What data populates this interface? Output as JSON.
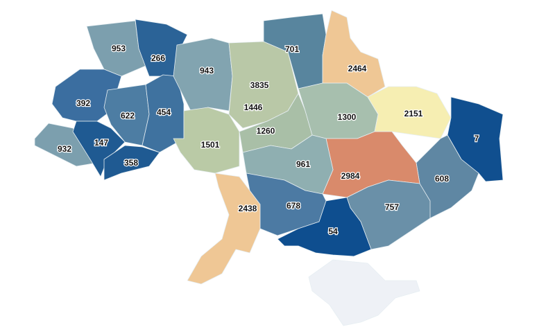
{
  "regions": [
    {
      "value": 953,
      "color": "#7c9fae"
    },
    {
      "value": 266,
      "color": "#2b6397"
    },
    {
      "value": 392,
      "color": "#3b6ea0"
    },
    {
      "value": 622,
      "color": "#4d7da3"
    },
    {
      "value": 454,
      "color": "#3f729f"
    },
    {
      "value": 932,
      "color": "#7c9fae"
    },
    {
      "value": 147,
      "color": "#1f5a92"
    },
    {
      "value": 358,
      "color": "#1f5a92"
    },
    {
      "value": 943,
      "color": "#82a4b0"
    },
    {
      "value": 3835,
      "color": "#b8535a"
    },
    {
      "value": 1446,
      "color": "#b9c8a7"
    },
    {
      "value": 1501,
      "color": "#bacaa6"
    },
    {
      "value": 1260,
      "color": "#a9bfa7"
    },
    {
      "value": 701,
      "color": "#58859e"
    },
    {
      "value": 2464,
      "color": "#efc795"
    },
    {
      "value": 1300,
      "color": "#a7bfae"
    },
    {
      "value": 2151,
      "color": "#f6eeb2"
    },
    {
      "value": 7,
      "color": "#104f8f"
    },
    {
      "value": 608,
      "color": "#5f87a3"
    },
    {
      "value": 2984,
      "color": "#d98a6b"
    },
    {
      "value": 961,
      "color": "#8fafb1"
    },
    {
      "value": 2438,
      "color": "#efc795"
    },
    {
      "value": 678,
      "color": "#4c7aa3"
    },
    {
      "value": 757,
      "color": "#6a90a8"
    },
    {
      "value": 54,
      "color": "#0e4e8f"
    }
  ]
}
